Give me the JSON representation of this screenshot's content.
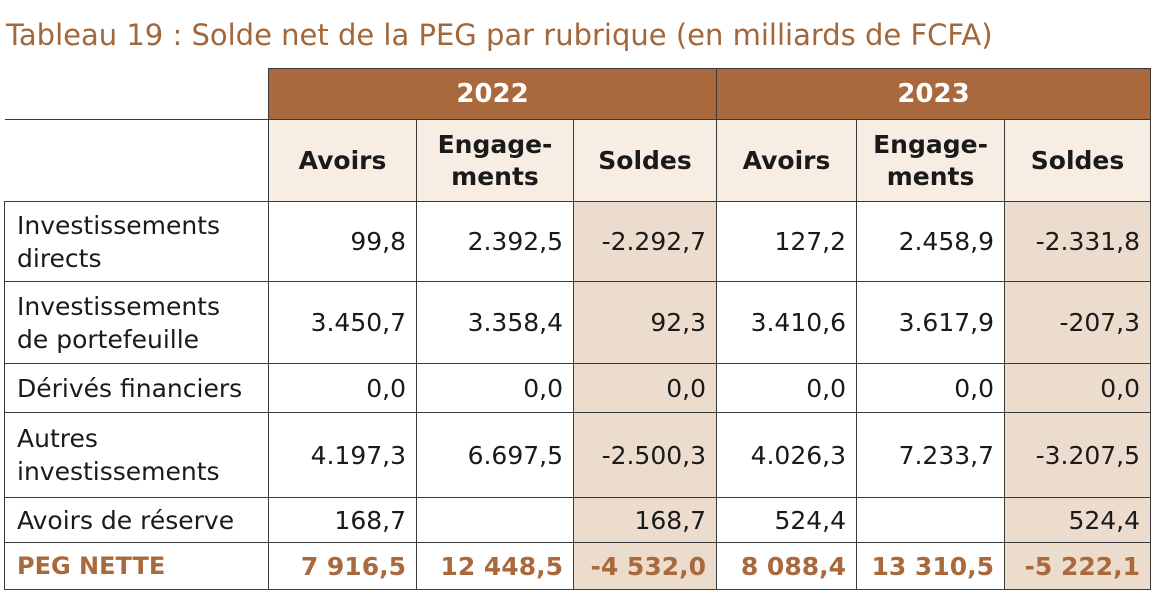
{
  "title": "Tableau 19 : Solde net de la PEG par rubrique (en milliards de FCFA)",
  "years": [
    "2022",
    "2023"
  ],
  "columns": [
    "Avoirs",
    "Engage-\nments",
    "Soldes",
    "Avoirs",
    "Engage-\nments",
    "Soldes"
  ],
  "rows": [
    {
      "label": "Investissements\ndirects",
      "values": [
        "99,8",
        "2.392,5",
        "-2.292,7",
        "127,2",
        "2.458,9",
        "-2.331,8"
      ]
    },
    {
      "label": "Investissements\nde portefeuille",
      "values": [
        "3.450,7",
        "3.358,4",
        "92,3",
        "3.410,6",
        "3.617,9",
        "-207,3"
      ]
    },
    {
      "label": "Dérivés financiers",
      "values": [
        "0,0",
        "0,0",
        "0,0",
        "0,0",
        "0,0",
        "0,0"
      ]
    },
    {
      "label": "Autres\ninvestissements",
      "values": [
        "4.197,3",
        "6.697,5",
        "-2.500,3",
        "4.026,3",
        "7.233,7",
        "-3.207,5"
      ]
    },
    {
      "label": "Avoirs de réserve",
      "values": [
        "168,7",
        "",
        "168,7",
        "524,4",
        "",
        "524,4"
      ]
    }
  ],
  "total": {
    "label": "PEG NETTE",
    "values": [
      "7 916,5",
      "12 448,5",
      "-4 532,0",
      "8 088,4",
      "13 310,5",
      "-5 222,1"
    ]
  },
  "colors": {
    "accent": "#a9693c",
    "title": "#a2673a",
    "shade": "#ecdccd",
    "subheader_bg": "#f7ede3"
  }
}
